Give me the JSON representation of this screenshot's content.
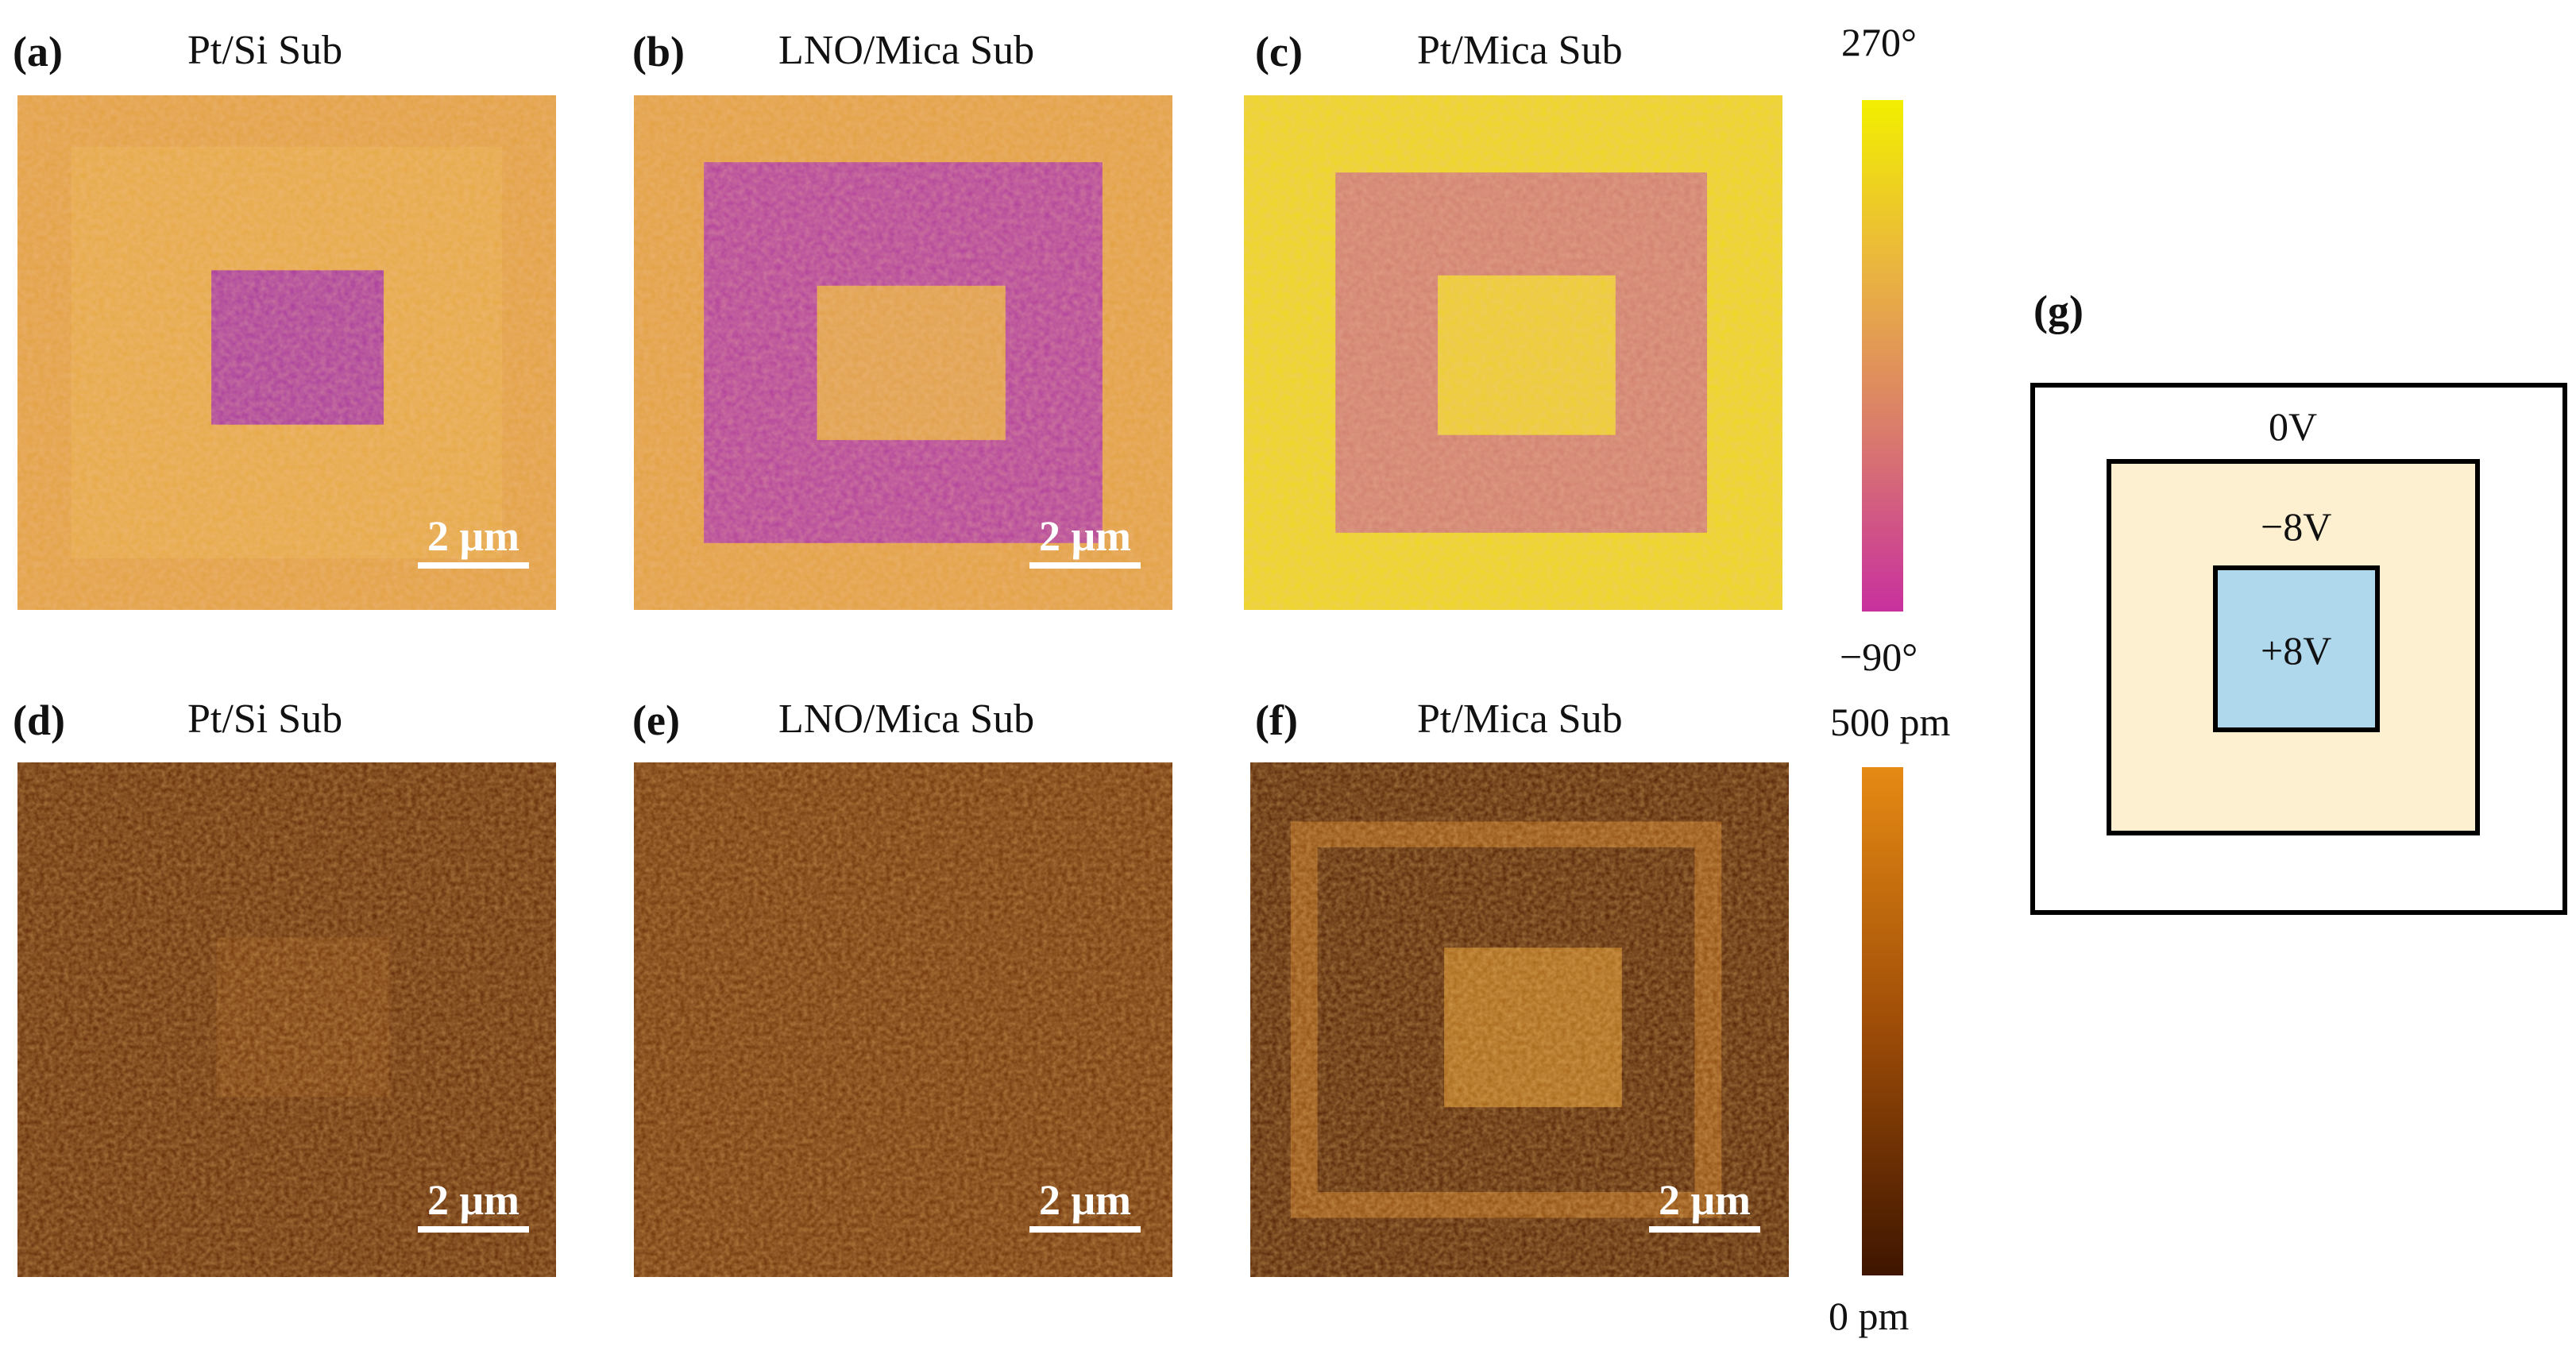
{
  "panels": [
    {
      "label": "(a)",
      "title": "Pt/Si Sub",
      "scale": "2 μm"
    },
    {
      "label": "(b)",
      "title": "LNO/Mica Sub",
      "scale": "2 μm"
    },
    {
      "label": "(c)",
      "title": "Pt/Mica Sub",
      "scale": "2 μm"
    },
    {
      "label": "(d)",
      "title": "Pt/Si Sub",
      "scale": "2 μm"
    },
    {
      "label": "(e)",
      "title": "LNO/Mica Sub",
      "scale": "2 μm"
    },
    {
      "label": "(f)",
      "title": "Pt/Mica Sub",
      "scale": "2 μm"
    }
  ],
  "phase_colorbar": {
    "max": "270°",
    "min": "−90°",
    "colors": [
      "#f2ef00",
      "#eab440",
      "#d9786e",
      "#c8309e"
    ]
  },
  "amplitude_colorbar": {
    "max": "500 pm",
    "min": "0 pm",
    "colors": [
      "#e68a14",
      "#a04e08",
      "#3e1500"
    ]
  },
  "schematic": {
    "label": "(g)",
    "outer": "0V",
    "middle": "−8V",
    "inner": "+8V",
    "colors": {
      "outer": "#ffffff",
      "middle": "#fdf0d0",
      "inner": "#b0d8ed"
    }
  },
  "map_colors": {
    "phase_bright": "#e8a43a",
    "phase_dark": "#b0369c",
    "phase_yellow": "#eed81e",
    "phase_mid": "#c8709a",
    "amp_base": "#5e2604",
    "amp_light": "#9a5410",
    "amp_bright": "#ecb040"
  }
}
